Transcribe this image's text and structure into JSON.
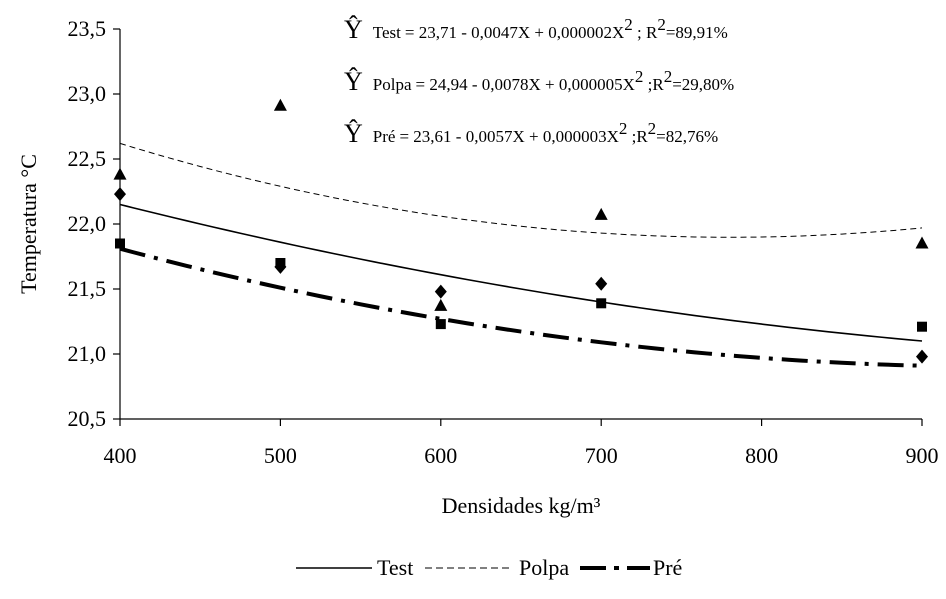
{
  "chart_data": {
    "type": "scatter",
    "xlabel": "Densidades kg/m³",
    "ylabel": "Temperatura °C",
    "xlim": [
      400,
      900
    ],
    "ylim": [
      20.5,
      23.5
    ],
    "x_ticks": [
      {
        "value": 400,
        "label": "400"
      },
      {
        "value": 500,
        "label": "500"
      },
      {
        "value": 600,
        "label": "600"
      },
      {
        "value": 700,
        "label": "700"
      },
      {
        "value": 800,
        "label": "800"
      },
      {
        "value": 900,
        "label": "900"
      }
    ],
    "y_ticks": [
      {
        "value": 20.5,
        "label": "20,5"
      },
      {
        "value": 21.0,
        "label": "21,0"
      },
      {
        "value": 21.5,
        "label": "21,5"
      },
      {
        "value": 22.0,
        "label": "22,0"
      },
      {
        "value": 22.5,
        "label": "22,5"
      },
      {
        "value": 23.0,
        "label": "23,0"
      },
      {
        "value": 23.5,
        "label": "23,5"
      }
    ],
    "grid": false,
    "legend_position": "bottom",
    "series": [
      {
        "name": "Test",
        "marker": "diamond",
        "line_style": "solid",
        "color": "#000000",
        "equation": {
          "prefix": "Ŷ",
          "label": "Test",
          "formula": "= 23,71 - 0,0047X + 0,000002X",
          "sup": "2",
          "r2_prefix": " ; R",
          "r2_sup": "2",
          "r2_value": "=89,91%"
        },
        "coefficients": [
          23.71,
          -0.0047,
          2e-06
        ],
        "points": [
          {
            "x": 400,
            "y": 22.23
          },
          {
            "x": 500,
            "y": 21.67
          },
          {
            "x": 600,
            "y": 21.48
          },
          {
            "x": 700,
            "y": 21.54
          },
          {
            "x": 900,
            "y": 20.98
          }
        ]
      },
      {
        "name": "Polpa",
        "marker": "triangle",
        "line_style": "dashed-fine",
        "color": "#000000",
        "equation": {
          "prefix": "Ŷ",
          "label": "Polpa",
          "formula": "= 24,94 - 0,0078X + 0,000005X",
          "sup": "2",
          "r2_prefix": " ;R",
          "r2_sup": "2",
          "r2_value": "=29,80%"
        },
        "coefficients": [
          24.94,
          -0.0078,
          5e-06
        ],
        "points": [
          {
            "x": 400,
            "y": 22.38
          },
          {
            "x": 500,
            "y": 22.91
          },
          {
            "x": 600,
            "y": 21.37
          },
          {
            "x": 700,
            "y": 22.07
          },
          {
            "x": 900,
            "y": 21.85
          }
        ]
      },
      {
        "name": "Pré",
        "marker": "square",
        "line_style": "dash-dot-thick",
        "color": "#000000",
        "equation": {
          "prefix": "Ŷ",
          "label": "Pré",
          "formula": "= 23,61 - 0,0057X + 0,000003X",
          "sup": "2",
          "r2_prefix": " ;R",
          "r2_sup": "2",
          "r2_value": "=82,76%"
        },
        "coefficients": [
          23.61,
          -0.0057,
          3e-06
        ],
        "points": [
          {
            "x": 400,
            "y": 21.85
          },
          {
            "x": 500,
            "y": 21.7
          },
          {
            "x": 600,
            "y": 21.23
          },
          {
            "x": 700,
            "y": 21.39
          },
          {
            "x": 900,
            "y": 21.21
          }
        ]
      }
    ]
  }
}
